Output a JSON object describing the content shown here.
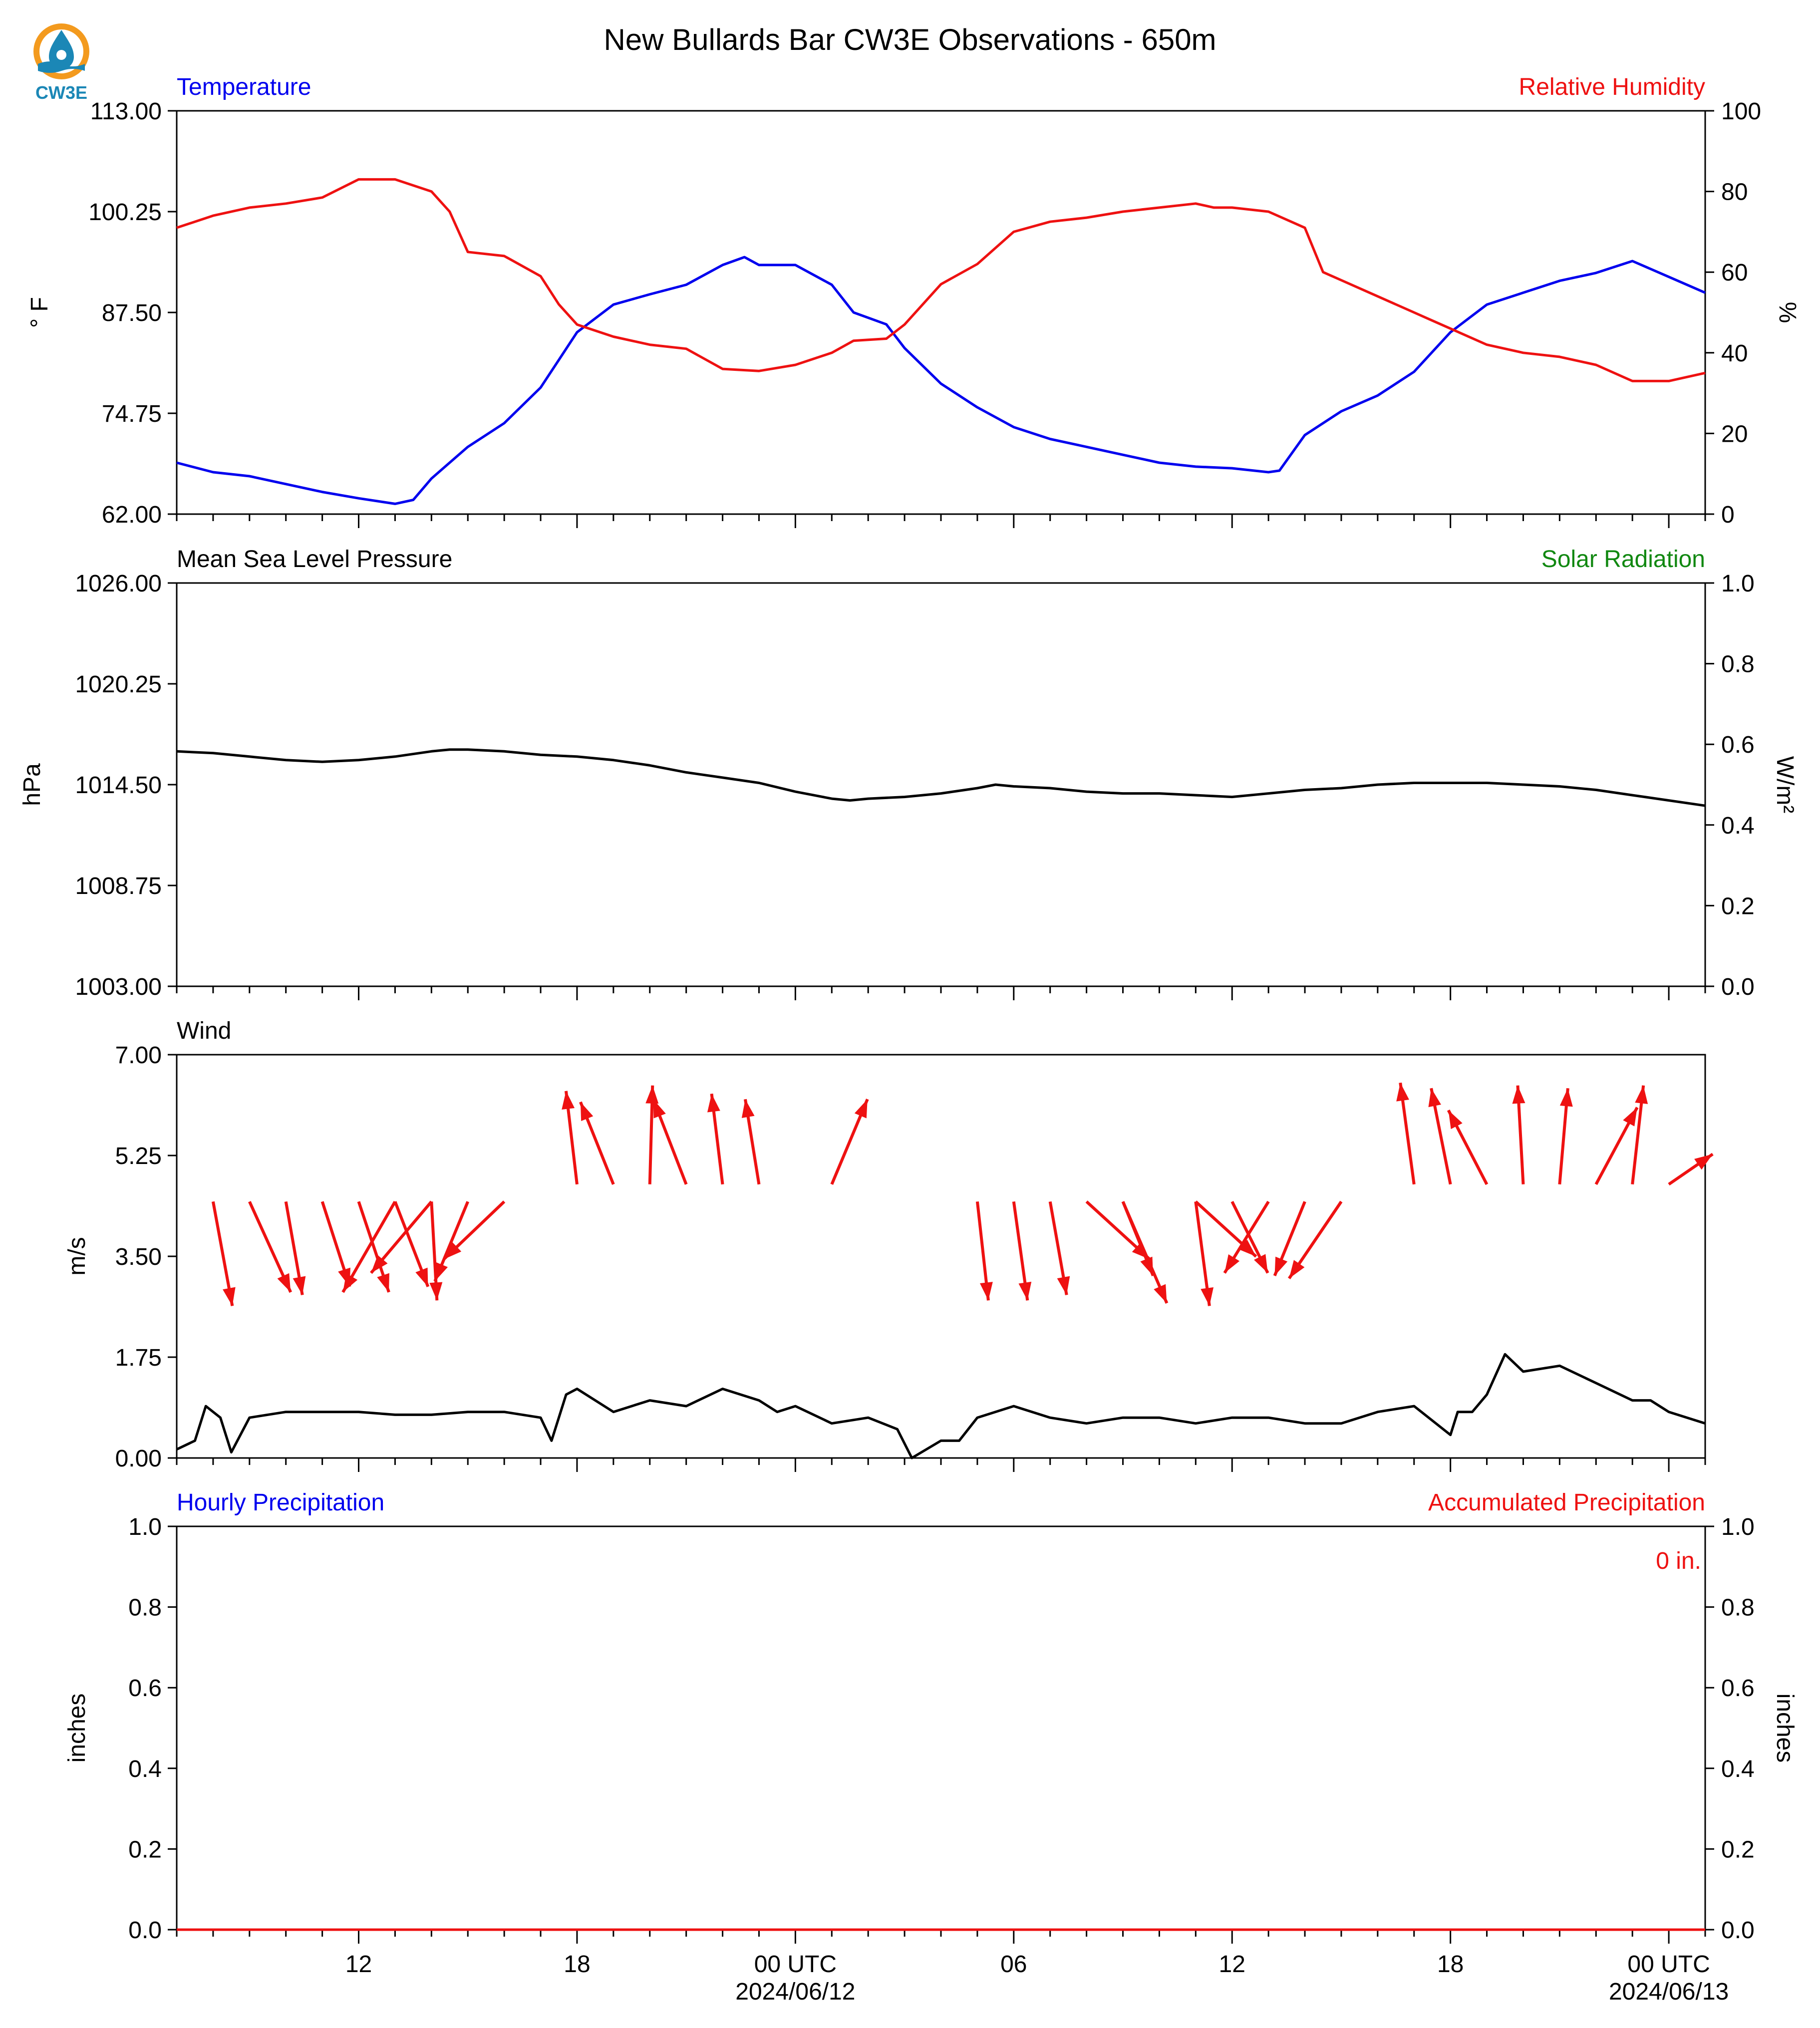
{
  "title": "New Bullards Bar CW3E Observations - 650m",
  "logo_text": "CW3E",
  "colors": {
    "blue": "#0000ee",
    "red": "#ee1111",
    "green": "#118811",
    "black": "#000000"
  },
  "x_axis": {
    "range_hours": [
      0,
      42
    ],
    "ticks": [
      {
        "h": 5,
        "label": "12",
        "sub": ""
      },
      {
        "h": 11,
        "label": "18",
        "sub": ""
      },
      {
        "h": 17,
        "label": "00 UTC",
        "sub": "2024/06/12"
      },
      {
        "h": 23,
        "label": "06",
        "sub": ""
      },
      {
        "h": 29,
        "label": "12",
        "sub": ""
      },
      {
        "h": 35,
        "label": "18",
        "sub": ""
      },
      {
        "h": 41,
        "label": "00 UTC",
        "sub": "2024/06/13"
      }
    ]
  },
  "chart_data": [
    {
      "type": "line",
      "left_title": "Temperature",
      "right_title": "Relative Humidity",
      "ylabel": "° F",
      "y2label": "%",
      "ylim": [
        62,
        113
      ],
      "yticks": [
        "62.00",
        "74.75",
        "87.50",
        "100.25",
        "113.00"
      ],
      "y2lim": [
        0,
        100
      ],
      "y2ticks": [
        "0",
        "20",
        "40",
        "60",
        "80",
        "100"
      ],
      "series": [
        {
          "axis": "left",
          "color": "blue",
          "points": [
            [
              0,
              68.5
            ],
            [
              1,
              67.3
            ],
            [
              2,
              66.8
            ],
            [
              3,
              65.8
            ],
            [
              4,
              64.8
            ],
            [
              5,
              64.0
            ],
            [
              6,
              63.3
            ],
            [
              6.5,
              63.8
            ],
            [
              7,
              66.5
            ],
            [
              8,
              70.5
            ],
            [
              9,
              73.5
            ],
            [
              10,
              78
            ],
            [
              10.5,
              81.5
            ],
            [
              11,
              85
            ],
            [
              12,
              88.5
            ],
            [
              13,
              89.8
            ],
            [
              14,
              91
            ],
            [
              15,
              93.5
            ],
            [
              15.6,
              94.5
            ],
            [
              16,
              93.5
            ],
            [
              17,
              93.5
            ],
            [
              18,
              91
            ],
            [
              18.6,
              87.5
            ],
            [
              19.5,
              86
            ],
            [
              20,
              83
            ],
            [
              21,
              78.5
            ],
            [
              22,
              75.5
            ],
            [
              23,
              73
            ],
            [
              24,
              71.5
            ],
            [
              25,
              70.5
            ],
            [
              26,
              69.5
            ],
            [
              27,
              68.5
            ],
            [
              28,
              68
            ],
            [
              29,
              67.8
            ],
            [
              30,
              67.3
            ],
            [
              30.3,
              67.5
            ],
            [
              31,
              72
            ],
            [
              32,
              75
            ],
            [
              33,
              77
            ],
            [
              34,
              80
            ],
            [
              35,
              85
            ],
            [
              36,
              88.5
            ],
            [
              37,
              90
            ],
            [
              38,
              91.5
            ],
            [
              39,
              92.5
            ],
            [
              40,
              94
            ],
            [
              41,
              92
            ],
            [
              42,
              90
            ]
          ]
        },
        {
          "axis": "right",
          "color": "red",
          "points": [
            [
              0,
              71
            ],
            [
              1,
              74
            ],
            [
              2,
              76
            ],
            [
              3,
              77
            ],
            [
              4,
              78.5
            ],
            [
              5,
              83
            ],
            [
              6,
              83
            ],
            [
              7,
              80
            ],
            [
              7.5,
              75
            ],
            [
              8,
              65
            ],
            [
              9,
              64
            ],
            [
              10,
              59
            ],
            [
              10.5,
              52
            ],
            [
              11,
              47
            ],
            [
              12,
              44
            ],
            [
              13,
              42
            ],
            [
              14,
              41
            ],
            [
              15,
              36
            ],
            [
              16,
              35.5
            ],
            [
              17,
              37
            ],
            [
              18,
              40
            ],
            [
              18.6,
              43
            ],
            [
              19.5,
              43.5
            ],
            [
              20,
              47
            ],
            [
              21,
              57
            ],
            [
              22,
              62
            ],
            [
              23,
              70
            ],
            [
              24,
              72.5
            ],
            [
              25,
              73.5
            ],
            [
              26,
              75
            ],
            [
              27,
              76
            ],
            [
              28,
              77
            ],
            [
              28.5,
              76
            ],
            [
              29,
              76
            ],
            [
              30,
              75
            ],
            [
              31,
              71
            ],
            [
              31.5,
              60
            ],
            [
              32,
              58
            ],
            [
              33,
              54
            ],
            [
              34,
              50
            ],
            [
              34.5,
              48
            ],
            [
              35,
              46
            ],
            [
              36,
              42
            ],
            [
              37,
              40
            ],
            [
              38,
              39
            ],
            [
              39,
              37
            ],
            [
              40,
              33
            ],
            [
              41,
              33
            ],
            [
              42,
              35
            ]
          ]
        }
      ]
    },
    {
      "type": "line",
      "left_title": "Mean Sea Level Pressure",
      "right_title": "Solar Radiation",
      "ylabel": "hPa",
      "y2label": "W/m²",
      "ylim": [
        1003,
        1026
      ],
      "yticks": [
        "1003.00",
        "1008.75",
        "1014.50",
        "1020.25",
        "1026.00"
      ],
      "y2lim": [
        0,
        1
      ],
      "y2ticks": [
        "0.0",
        "0.2",
        "0.4",
        "0.6",
        "0.8",
        "1.0"
      ],
      "series": [
        {
          "axis": "left",
          "color": "black",
          "points": [
            [
              0,
              1016.4
            ],
            [
              1,
              1016.3
            ],
            [
              2,
              1016.1
            ],
            [
              3,
              1015.9
            ],
            [
              4,
              1015.8
            ],
            [
              5,
              1015.9
            ],
            [
              6,
              1016.1
            ],
            [
              7,
              1016.4
            ],
            [
              7.5,
              1016.5
            ],
            [
              8,
              1016.5
            ],
            [
              9,
              1016.4
            ],
            [
              10,
              1016.2
            ],
            [
              11,
              1016.1
            ],
            [
              12,
              1015.9
            ],
            [
              13,
              1015.6
            ],
            [
              14,
              1015.2
            ],
            [
              15,
              1014.9
            ],
            [
              16,
              1014.6
            ],
            [
              17,
              1014.1
            ],
            [
              18,
              1013.7
            ],
            [
              18.5,
              1013.6
            ],
            [
              19,
              1013.7
            ],
            [
              20,
              1013.8
            ],
            [
              21,
              1014.0
            ],
            [
              22,
              1014.3
            ],
            [
              22.5,
              1014.5
            ],
            [
              23,
              1014.4
            ],
            [
              24,
              1014.3
            ],
            [
              25,
              1014.1
            ],
            [
              26,
              1014.0
            ],
            [
              27,
              1014.0
            ],
            [
              28,
              1013.9
            ],
            [
              29,
              1013.8
            ],
            [
              30,
              1014.0
            ],
            [
              31,
              1014.2
            ],
            [
              32,
              1014.3
            ],
            [
              33,
              1014.5
            ],
            [
              34,
              1014.6
            ],
            [
              35,
              1014.6
            ],
            [
              36,
              1014.6
            ],
            [
              37,
              1014.5
            ],
            [
              38,
              1014.4
            ],
            [
              39,
              1014.2
            ],
            [
              40,
              1013.9
            ],
            [
              41,
              1013.6
            ],
            [
              42,
              1013.3
            ]
          ]
        }
      ]
    },
    {
      "type": "line",
      "left_title": "Wind",
      "right_title": "",
      "ylabel": "m/s",
      "y2label": "",
      "ylim": [
        0,
        7
      ],
      "yticks": [
        "0.00",
        "1.75",
        "3.50",
        "5.25",
        "7.00"
      ],
      "series": [
        {
          "axis": "left",
          "color": "black",
          "points": [
            [
              0,
              0.15
            ],
            [
              0.5,
              0.3
            ],
            [
              0.8,
              0.9
            ],
            [
              1.2,
              0.7
            ],
            [
              1.5,
              0.1
            ],
            [
              2,
              0.7
            ],
            [
              3,
              0.8
            ],
            [
              4,
              0.8
            ],
            [
              5,
              0.8
            ],
            [
              6,
              0.75
            ],
            [
              7,
              0.75
            ],
            [
              8,
              0.8
            ],
            [
              9,
              0.8
            ],
            [
              10,
              0.7
            ],
            [
              10.3,
              0.3
            ],
            [
              10.7,
              1.1
            ],
            [
              11,
              1.2
            ],
            [
              12,
              0.8
            ],
            [
              13,
              1.0
            ],
            [
              14,
              0.9
            ],
            [
              15,
              1.2
            ],
            [
              16,
              1.0
            ],
            [
              16.5,
              0.8
            ],
            [
              17,
              0.9
            ],
            [
              18,
              0.6
            ],
            [
              19,
              0.7
            ],
            [
              19.8,
              0.5
            ],
            [
              20.2,
              0.0
            ],
            [
              21,
              0.3
            ],
            [
              21.5,
              0.3
            ],
            [
              22,
              0.7
            ],
            [
              23,
              0.9
            ],
            [
              24,
              0.7
            ],
            [
              25,
              0.6
            ],
            [
              26,
              0.7
            ],
            [
              27,
              0.7
            ],
            [
              28,
              0.6
            ],
            [
              29,
              0.7
            ],
            [
              30,
              0.7
            ],
            [
              31,
              0.6
            ],
            [
              32,
              0.6
            ],
            [
              33,
              0.8
            ],
            [
              34,
              0.9
            ],
            [
              34.6,
              0.6
            ],
            [
              35,
              0.4
            ],
            [
              35.2,
              0.8
            ],
            [
              35.6,
              0.8
            ],
            [
              36,
              1.1
            ],
            [
              36.5,
              1.8
            ],
            [
              37,
              1.5
            ],
            [
              38,
              1.6
            ],
            [
              39,
              1.3
            ],
            [
              40,
              1.0
            ],
            [
              40.5,
              1.0
            ],
            [
              41,
              0.8
            ],
            [
              42,
              0.6
            ]
          ]
        }
      ],
      "vectors": [
        {
          "t": 1,
          "dx": 0.7,
          "dy": -3.8
        },
        {
          "t": 2,
          "dx": 1.5,
          "dy": -3.3
        },
        {
          "t": 3,
          "dx": 0.6,
          "dy": -3.4
        },
        {
          "t": 4,
          "dx": 1.0,
          "dy": -3.1
        },
        {
          "t": 5,
          "dx": 1.1,
          "dy": -3.3
        },
        {
          "t": 6,
          "dx": -1.9,
          "dy": -3.3
        },
        {
          "t": 6,
          "dx": 1.2,
          "dy": -3.1
        },
        {
          "t": 7,
          "dx": -2.2,
          "dy": -2.6
        },
        {
          "t": 7,
          "dx": 0.2,
          "dy": -3.6
        },
        {
          "t": 8,
          "dx": -1.2,
          "dy": -2.9
        },
        {
          "t": 9,
          "dx": -2.2,
          "dy": -2.1
        },
        {
          "t": 11,
          "dx": -0.4,
          "dy": 3.4
        },
        {
          "t": 12,
          "dx": -1.2,
          "dy": 3.0
        },
        {
          "t": 13,
          "dx": 0.1,
          "dy": 3.6
        },
        {
          "t": 14,
          "dx": -1.2,
          "dy": 3.1
        },
        {
          "t": 15,
          "dx": -0.4,
          "dy": 3.3
        },
        {
          "t": 16,
          "dx": -0.5,
          "dy": 3.1
        },
        {
          "t": 18,
          "dx": 1.3,
          "dy": 3.1
        },
        {
          "t": 22,
          "dx": 0.4,
          "dy": -3.6
        },
        {
          "t": 23,
          "dx": 0.5,
          "dy": -3.6
        },
        {
          "t": 24,
          "dx": 0.6,
          "dy": -3.4
        },
        {
          "t": 25,
          "dx": 2.3,
          "dy": -2.1
        },
        {
          "t": 26,
          "dx": 1.1,
          "dy": -2.7
        },
        {
          "t": 26,
          "dx": 1.6,
          "dy": -3.7
        },
        {
          "t": 28,
          "dx": 2.2,
          "dy": -2.0
        },
        {
          "t": 28,
          "dx": 0.5,
          "dy": -3.8
        },
        {
          "t": 29,
          "dx": 1.3,
          "dy": -2.6
        },
        {
          "t": 30,
          "dx": -1.6,
          "dy": -2.6
        },
        {
          "t": 31,
          "dx": -1.1,
          "dy": -2.7
        },
        {
          "t": 32,
          "dx": -1.9,
          "dy": -2.8
        },
        {
          "t": 34,
          "dx": -0.5,
          "dy": 3.7
        },
        {
          "t": 35,
          "dx": -0.7,
          "dy": 3.5
        },
        {
          "t": 36,
          "dx": -1.4,
          "dy": 2.7
        },
        {
          "t": 37,
          "dx": -0.2,
          "dy": 3.6
        },
        {
          "t": 38,
          "dx": 0.3,
          "dy": 3.5
        },
        {
          "t": 39,
          "dx": 1.5,
          "dy": 2.8
        },
        {
          "t": 40,
          "dx": 0.4,
          "dy": 3.6
        },
        {
          "t": 41,
          "dx": 1.6,
          "dy": 1.1
        }
      ]
    },
    {
      "type": "line",
      "left_title": "Hourly Precipitation",
      "right_title": "Accumulated Precipitation",
      "annotation": "0 in.",
      "ylabel": "inches",
      "y2label": "inches",
      "ylim": [
        0,
        1
      ],
      "yticks": [
        "0.0",
        "0.2",
        "0.4",
        "0.6",
        "0.8",
        "1.0"
      ],
      "y2lim": [
        0,
        1
      ],
      "y2ticks": [
        "0.0",
        "0.2",
        "0.4",
        "0.6",
        "0.8",
        "1.0"
      ],
      "series": [
        {
          "axis": "left",
          "color": "blue",
          "points": [
            [
              0,
              0
            ],
            [
              42,
              0
            ]
          ]
        },
        {
          "axis": "right",
          "color": "red",
          "points": [
            [
              0,
              0
            ],
            [
              42,
              0
            ]
          ]
        }
      ]
    }
  ]
}
